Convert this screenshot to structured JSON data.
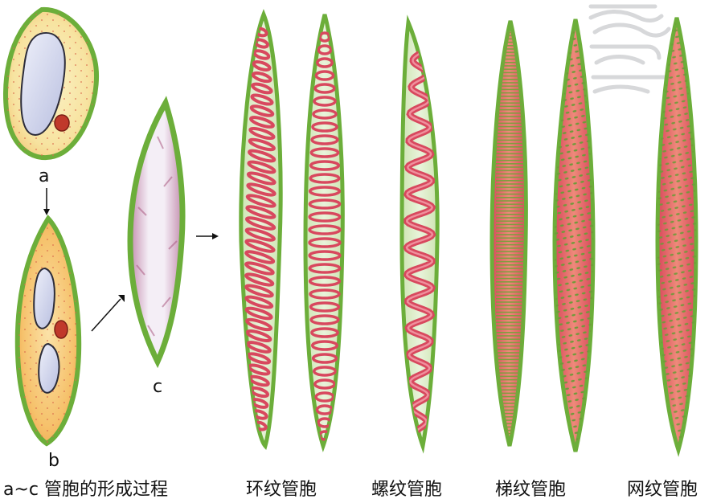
{
  "stages": {
    "a": "a",
    "b": "b",
    "c": "c"
  },
  "captions": {
    "formation": "a~c 管胞的形成过程",
    "annular": "环纹管胞",
    "spiral": "螺纹管胞",
    "scalariform": "梯纹管胞",
    "reticulate": "网纹管胞"
  },
  "colors": {
    "wall_green": "#6cae3a",
    "cytoplasm_yellow": "#f7e6a6",
    "cytoplasm_orange": "#f4b45a",
    "vacuole": "#c9cde8",
    "nucleus": "#c0392b",
    "lumen_green": "#d9ecc4",
    "thickening_red": "#e0566a",
    "pit_green": "#7fa34a"
  },
  "icons": {
    "watermark": "cloud-scroll-watermark-icon"
  }
}
